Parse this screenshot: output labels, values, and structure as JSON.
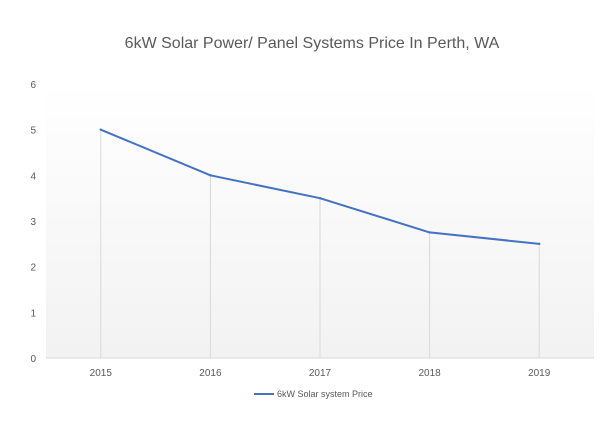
{
  "chart_data": {
    "type": "line",
    "title": "6kW Solar Power/ Panel Systems Price In Perth, WA",
    "xlabel": "",
    "ylabel": "",
    "categories": [
      "2015",
      "2016",
      "2017",
      "2018",
      "2019"
    ],
    "series": [
      {
        "name": "6kW Solar system Price",
        "values": [
          5,
          4,
          3.5,
          2.75,
          2.5
        ],
        "color": "#4472C4"
      }
    ],
    "ylim": [
      0,
      6
    ],
    "yticks": [
      "0",
      "1",
      "2",
      "3",
      "4",
      "5",
      "6"
    ],
    "grid": false,
    "drop_lines": true,
    "legend_position": "bottom"
  }
}
